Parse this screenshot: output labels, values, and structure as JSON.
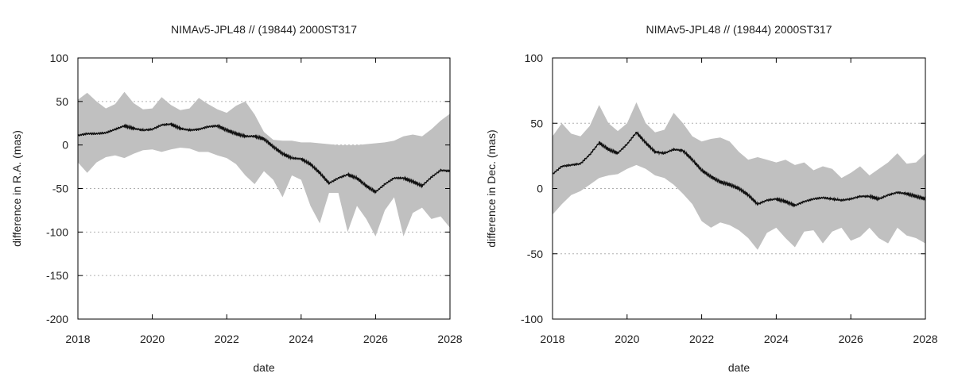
{
  "figure": {
    "colors": {
      "band": "#c0c0c0",
      "line": "#111111",
      "grid": "#b0b0b0",
      "axis": "#000000"
    }
  },
  "chart_data": [
    {
      "type": "area",
      "title": "NIMAv5-JPL48 // (19844) 2000ST317",
      "xlabel": "date",
      "ylabel": "difference in R.A. (mas)",
      "xlim": [
        2018,
        2028
      ],
      "ylim": [
        -200,
        100
      ],
      "xticks": [
        2018,
        2020,
        2022,
        2024,
        2026,
        2028
      ],
      "yticks": [
        -200,
        -150,
        -100,
        -50,
        0,
        50,
        100
      ],
      "grid": "horizontal dotted",
      "series": [
        {
          "role": "difference",
          "x": [
            2018.0,
            2018.25,
            2018.5,
            2018.75,
            2019.0,
            2019.25,
            2019.5,
            2019.75,
            2020.0,
            2020.25,
            2020.5,
            2020.75,
            2021.0,
            2021.25,
            2021.5,
            2021.75,
            2022.0,
            2022.25,
            2022.5,
            2022.75,
            2023.0,
            2023.25,
            2023.5,
            2023.75,
            2024.0,
            2024.25,
            2024.5,
            2024.75,
            2025.0,
            2025.25,
            2025.5,
            2025.75,
            2026.0,
            2026.25,
            2026.5,
            2026.75,
            2027.0,
            2027.25,
            2027.5,
            2027.75,
            2028.0
          ],
          "y": [
            11,
            13,
            13,
            14,
            18,
            22,
            19,
            17,
            18,
            23,
            24,
            19,
            17,
            18,
            21,
            22,
            17,
            13,
            10,
            10,
            7,
            -2,
            -10,
            -15,
            -16,
            -22,
            -32,
            -44,
            -38,
            -34,
            -38,
            -47,
            -54,
            -45,
            -38,
            -38,
            -42,
            -47,
            -37,
            -29,
            -30
          ]
        },
        {
          "role": "uncertainty_band",
          "x": [
            2018.0,
            2018.25,
            2018.5,
            2018.75,
            2019.0,
            2019.25,
            2019.5,
            2019.75,
            2020.0,
            2020.25,
            2020.5,
            2020.75,
            2021.0,
            2021.25,
            2021.5,
            2021.75,
            2022.0,
            2022.25,
            2022.5,
            2022.75,
            2023.0,
            2023.25,
            2023.5,
            2023.75,
            2024.0,
            2024.25,
            2024.5,
            2024.75,
            2025.0,
            2025.25,
            2025.5,
            2025.75,
            2026.0,
            2026.25,
            2026.5,
            2026.75,
            2027.0,
            2027.25,
            2027.5,
            2027.75,
            2028.0
          ],
          "upper": [
            52,
            60,
            50,
            42,
            47,
            61,
            48,
            41,
            42,
            55,
            46,
            40,
            42,
            54,
            47,
            41,
            37,
            45,
            50,
            35,
            15,
            6,
            5,
            5,
            3,
            3,
            2,
            1,
            0,
            0,
            0,
            1,
            2,
            3,
            5,
            10,
            12,
            10,
            18,
            28,
            36
          ],
          "lower": [
            -20,
            -32,
            -20,
            -14,
            -12,
            -15,
            -10,
            -6,
            -5,
            -8,
            -5,
            -3,
            -4,
            -8,
            -8,
            -12,
            -15,
            -22,
            -35,
            -45,
            -30,
            -40,
            -60,
            -35,
            -40,
            -70,
            -90,
            -55,
            -55,
            -100,
            -70,
            -85,
            -105,
            -75,
            -60,
            -105,
            -78,
            -72,
            -85,
            -82,
            -95
          ]
        }
      ]
    },
    {
      "type": "area",
      "title": "NIMAv5-JPL48 // (19844) 2000ST317",
      "xlabel": "date",
      "ylabel": "difference in Dec. (mas)",
      "xlim": [
        2018,
        2028
      ],
      "ylim": [
        -100,
        100
      ],
      "xticks": [
        2018,
        2020,
        2022,
        2024,
        2026,
        2028
      ],
      "yticks": [
        -100,
        -50,
        0,
        50,
        100
      ],
      "grid": "horizontal dotted",
      "series": [
        {
          "role": "difference",
          "x": [
            2018.0,
            2018.25,
            2018.5,
            2018.75,
            2019.0,
            2019.25,
            2019.5,
            2019.75,
            2020.0,
            2020.25,
            2020.5,
            2020.75,
            2021.0,
            2021.25,
            2021.5,
            2021.75,
            2022.0,
            2022.25,
            2022.5,
            2022.75,
            2023.0,
            2023.25,
            2023.5,
            2023.75,
            2024.0,
            2024.25,
            2024.5,
            2024.75,
            2025.0,
            2025.25,
            2025.5,
            2025.75,
            2026.0,
            2026.25,
            2026.5,
            2026.75,
            2027.0,
            2027.25,
            2027.5,
            2027.75,
            2028.0
          ],
          "y": [
            11,
            17,
            18,
            19,
            26,
            35,
            30,
            27,
            34,
            43,
            35,
            28,
            27,
            30,
            29,
            22,
            14,
            9,
            5,
            3,
            0,
            -5,
            -12,
            -9,
            -8,
            -10,
            -13,
            -10,
            -8,
            -7,
            -8,
            -9,
            -8,
            -6,
            -6,
            -8,
            -5,
            -3,
            -4,
            -6,
            -8
          ]
        },
        {
          "role": "uncertainty_band",
          "x": [
            2018.0,
            2018.25,
            2018.5,
            2018.75,
            2019.0,
            2019.25,
            2019.5,
            2019.75,
            2020.0,
            2020.25,
            2020.5,
            2020.75,
            2021.0,
            2021.25,
            2021.5,
            2021.75,
            2022.0,
            2022.25,
            2022.5,
            2022.75,
            2023.0,
            2023.25,
            2023.5,
            2023.75,
            2024.0,
            2024.25,
            2024.5,
            2024.75,
            2025.0,
            2025.25,
            2025.5,
            2025.75,
            2026.0,
            2026.25,
            2026.5,
            2026.75,
            2027.0,
            2027.25,
            2027.5,
            2027.75,
            2028.0
          ],
          "upper": [
            40,
            50,
            42,
            40,
            48,
            64,
            50,
            44,
            50,
            66,
            50,
            43,
            45,
            58,
            50,
            40,
            36,
            38,
            39,
            36,
            28,
            22,
            24,
            22,
            20,
            22,
            18,
            20,
            14,
            17,
            15,
            8,
            12,
            17,
            10,
            15,
            20,
            27,
            19,
            20,
            27
          ],
          "lower": [
            -20,
            -12,
            -5,
            -2,
            3,
            8,
            10,
            11,
            15,
            18,
            15,
            10,
            8,
            3,
            -4,
            -12,
            -25,
            -30,
            -26,
            -28,
            -32,
            -38,
            -47,
            -34,
            -30,
            -38,
            -45,
            -33,
            -32,
            -42,
            -33,
            -30,
            -40,
            -37,
            -30,
            -38,
            -42,
            -30,
            -36,
            -38,
            -42
          ]
        }
      ]
    }
  ]
}
